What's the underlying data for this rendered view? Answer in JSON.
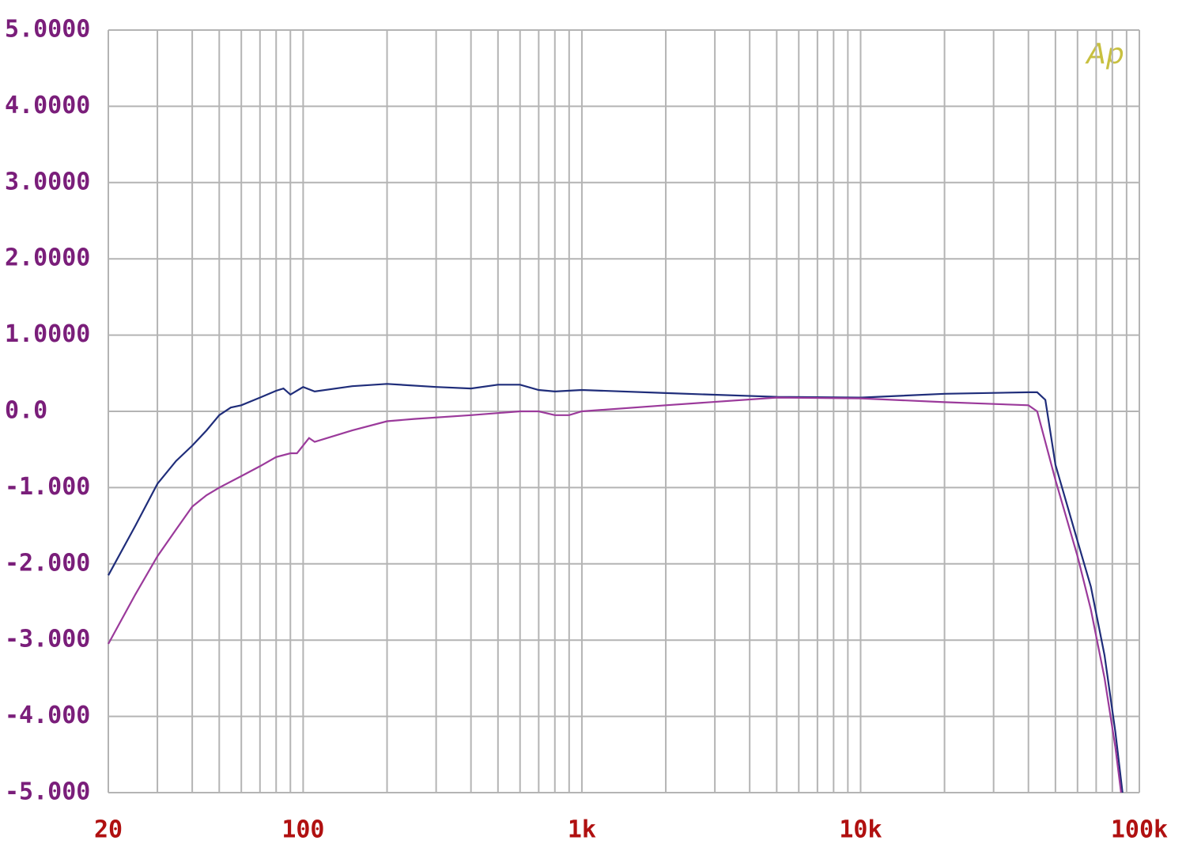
{
  "chart_data": {
    "type": "line",
    "logo": "Ap",
    "xscale": "log",
    "xlim": [
      20,
      100000
    ],
    "ylim": [
      -5,
      5
    ],
    "xticks": [
      20,
      100,
      {
        "value": 1000,
        "label": "1k"
      },
      {
        "value": 10000,
        "label": "10k"
      },
      {
        "value": 100000,
        "label": "100k"
      }
    ],
    "yticks": [
      {
        "value": 5,
        "label": "5.0000"
      },
      {
        "value": 4,
        "label": "4.0000"
      },
      {
        "value": 3,
        "label": "3.0000"
      },
      {
        "value": 2,
        "label": "2.0000"
      },
      {
        "value": 1,
        "label": "1.0000"
      },
      {
        "value": 0,
        "label": "0.0"
      },
      {
        "value": -1,
        "label": "-1.000"
      },
      {
        "value": -2,
        "label": "-2.000"
      },
      {
        "value": -3,
        "label": "-3.000"
      },
      {
        "value": -4,
        "label": "-4.000"
      },
      {
        "value": -5,
        "label": "-5.000"
      }
    ],
    "xgrid": [
      30,
      40,
      50,
      60,
      70,
      80,
      90,
      200,
      300,
      400,
      500,
      600,
      700,
      800,
      900,
      2000,
      3000,
      4000,
      5000,
      6000,
      7000,
      8000,
      9000,
      20000,
      30000,
      40000,
      50000,
      60000,
      70000,
      80000,
      90000
    ],
    "grid": true,
    "series": [
      {
        "color": "#1f2d7a",
        "x": [
          20,
          25,
          30,
          35,
          40,
          45,
          50,
          55,
          60,
          70,
          80,
          85,
          90,
          100,
          110,
          150,
          200,
          300,
          400,
          500,
          600,
          700,
          800,
          1000,
          2000,
          5000,
          10000,
          20000,
          40000,
          43000,
          46000,
          50000,
          60000,
          67000,
          75000,
          82000,
          87000
        ],
        "values": [
          -2.15,
          -1.5,
          -0.95,
          -0.65,
          -0.45,
          -0.25,
          -0.05,
          0.05,
          0.08,
          0.18,
          0.27,
          0.3,
          0.22,
          0.32,
          0.26,
          0.33,
          0.36,
          0.32,
          0.3,
          0.35,
          0.35,
          0.28,
          0.26,
          0.28,
          0.24,
          0.19,
          0.18,
          0.23,
          0.25,
          0.25,
          0.15,
          -0.7,
          -1.7,
          -2.3,
          -3.2,
          -4.2,
          -5.0
        ]
      },
      {
        "color": "#9b3a9b",
        "x": [
          20,
          25,
          30,
          35,
          40,
          45,
          50,
          60,
          70,
          80,
          90,
          95,
          105,
          110,
          150,
          200,
          250,
          400,
          600,
          700,
          800,
          900,
          1000,
          2000,
          5000,
          10000,
          20000,
          40000,
          43000,
          50000,
          60000,
          67000,
          75000,
          82000,
          86000
        ],
        "values": [
          -3.05,
          -2.4,
          -1.9,
          -1.55,
          -1.25,
          -1.1,
          -1.0,
          -0.85,
          -0.72,
          -0.6,
          -0.55,
          -0.55,
          -0.35,
          -0.4,
          -0.25,
          -0.13,
          -0.1,
          -0.05,
          0.0,
          0.0,
          -0.05,
          -0.05,
          0.0,
          0.08,
          0.18,
          0.17,
          0.12,
          0.08,
          0.0,
          -0.9,
          -1.9,
          -2.6,
          -3.5,
          -4.4,
          -5.0
        ]
      }
    ]
  }
}
